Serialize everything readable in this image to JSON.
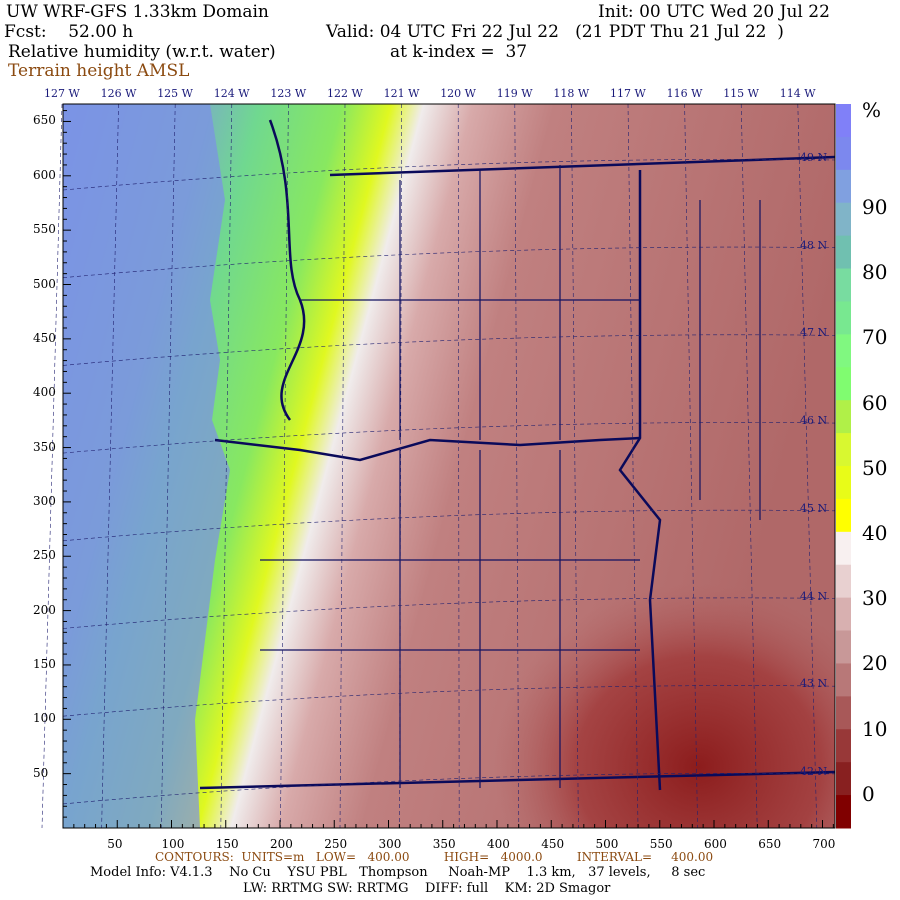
{
  "header": {
    "title": "UW WRF-GFS 1.33km Domain",
    "init": "Init: 00 UTC Wed 20 Jul 22",
    "fcst": "Fcst:    52.00 h",
    "valid": "Valid: 04 UTC Fri 22 Jul 22   (21 PDT Thu 21 Jul 22  )",
    "field": "Relative humidity (w.r.t. water)",
    "kindex": "at k-index =  37",
    "overlay": "Terrain height AMSL"
  },
  "longitude_labels": [
    "127 W",
    "126 W",
    "125 W",
    "124 W",
    "123 W",
    "122 W",
    "121 W",
    "120 W",
    "119 W",
    "118 W",
    "117 W",
    "116 W",
    "115 W",
    "114 W"
  ],
  "latitude_labels": [
    "49 N",
    "48 N",
    "47 N",
    "46 N",
    "45 N",
    "44 N",
    "43 N",
    "42 N"
  ],
  "x_ticks": [
    "50",
    "100",
    "150",
    "200",
    "250",
    "300",
    "350",
    "400",
    "450",
    "500",
    "550",
    "600",
    "650",
    "700"
  ],
  "y_ticks": [
    "650",
    "600",
    "550",
    "500",
    "450",
    "400",
    "350",
    "300",
    "250",
    "200",
    "150",
    "100",
    "50"
  ],
  "colorbar": {
    "unit": "%",
    "labels": [
      "90",
      "80",
      "70",
      "60",
      "50",
      "40",
      "30",
      "20",
      "10",
      "0"
    ],
    "colors": [
      "#8080f8",
      "#7c88ee",
      "#80a0e0",
      "#80b4c8",
      "#70c0b0",
      "#78dca0",
      "#78e890",
      "#80f880",
      "#80fc70",
      "#b0f048",
      "#d8f830",
      "#e8fc18",
      "#ffff00",
      "#f8f0f0",
      "#e8d0d0",
      "#d8b0b0",
      "#c89898",
      "#b87878",
      "#a85858",
      "#983838",
      "#882020",
      "#800000"
    ]
  },
  "footer": {
    "contours": "CONTOURS:  UNITS=m   LOW=   400.00         HIGH=   4000.0         INTERVAL=     400.00",
    "model_info": "Model Info: V4.1.3    No Cu    YSU PBL   Thompson     Noah-MP    1.3 km,   37 levels,     8 sec",
    "model_info2": "LW: RRTMG SW: RRTMG    DIFF: full    KM: 2D Smagor"
  }
}
